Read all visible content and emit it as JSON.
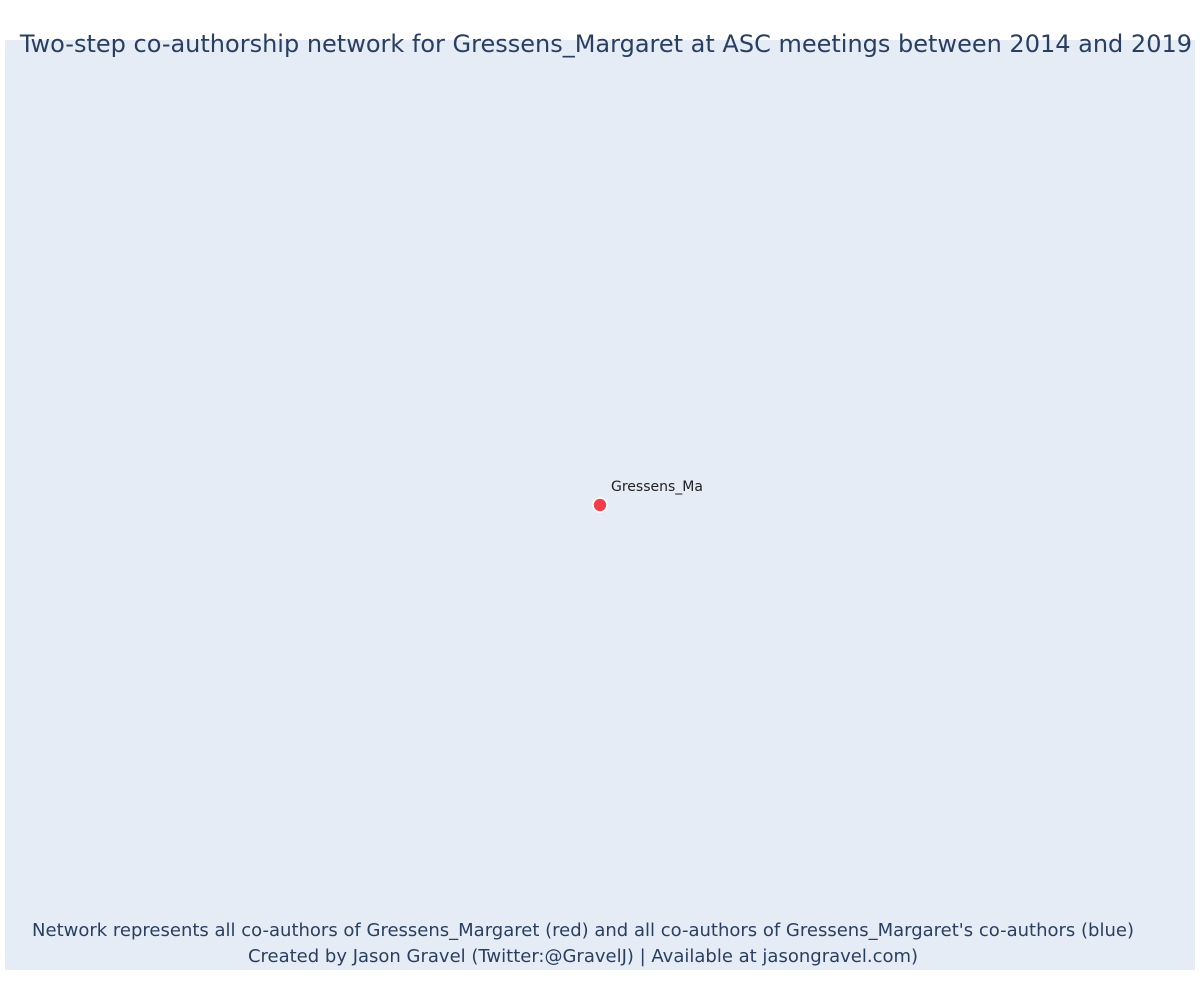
{
  "title": "Two-step co-authorship network for Gressens_Margaret at ASC meetings between 2014 and 2019",
  "colors": {
    "background": "#e5ecf6",
    "text": "#2a3f5f",
    "focal_node": "#ef3f4a",
    "node_outline": "#ffffff"
  },
  "network": {
    "nodes": [
      {
        "label": "Gressens_Ma",
        "role": "focal",
        "color": "#ef3f4a"
      }
    ],
    "edges": []
  },
  "footnote": {
    "line1": "Network represents all co-authors of Gressens_Margaret (red) and all co-authors of Gressens_Margaret's co-authors (blue)",
    "line2": "Created by Jason Gravel (Twitter:@GravelJ) | Available at jasongravel.com)"
  }
}
